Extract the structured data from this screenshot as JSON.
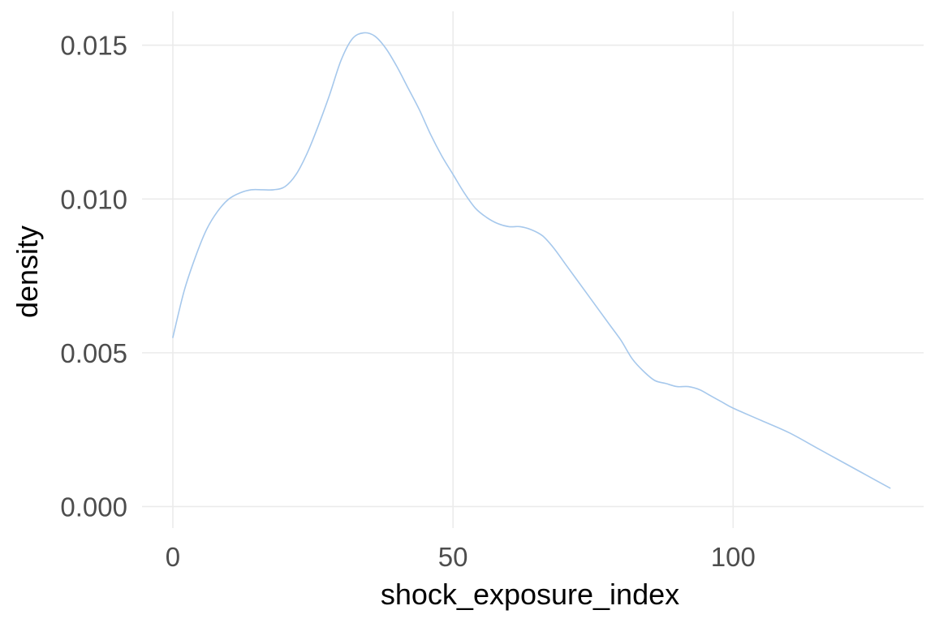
{
  "chart_data": {
    "type": "line",
    "title": "",
    "xlabel": "shock_exposure_index",
    "ylabel": "density",
    "xlim": [
      -5.5,
      134
    ],
    "ylim": [
      -0.0007,
      0.0161
    ],
    "x_ticks": [
      0,
      50,
      100
    ],
    "x_tick_labels": [
      "0",
      "50",
      "100"
    ],
    "y_ticks": [
      0.0,
      0.005,
      0.01,
      0.015
    ],
    "y_tick_labels": [
      "0.000",
      "0.005",
      "0.010",
      "0.015"
    ],
    "grid": true,
    "legend": "none",
    "line_color": "#a6c8ec",
    "grid_color": "#ebebeb",
    "series": [
      {
        "x": [
          0,
          2,
          4,
          6,
          8,
          10,
          12,
          14,
          16,
          18,
          20,
          22,
          24,
          26,
          28,
          30,
          32,
          34,
          36,
          38,
          40,
          42,
          44,
          46,
          48,
          50,
          52,
          54,
          56,
          58,
          60,
          62,
          64,
          66,
          68,
          70,
          72,
          74,
          76,
          78,
          80,
          82,
          84,
          86,
          88,
          90,
          92,
          94,
          96,
          98,
          100,
          105,
          110,
          115,
          120,
          124,
          128
        ],
        "y": [
          0.0055,
          0.007,
          0.0081,
          0.009,
          0.0096,
          0.01,
          0.0102,
          0.0103,
          0.0103,
          0.0103,
          0.0104,
          0.0108,
          0.0115,
          0.0124,
          0.0134,
          0.0145,
          0.0152,
          0.0154,
          0.0153,
          0.0149,
          0.0143,
          0.0136,
          0.0129,
          0.0121,
          0.0114,
          0.0108,
          0.0102,
          0.0097,
          0.0094,
          0.0092,
          0.0091,
          0.0091,
          0.009,
          0.0088,
          0.0084,
          0.0079,
          0.0074,
          0.0069,
          0.0064,
          0.0059,
          0.0054,
          0.0048,
          0.0044,
          0.0041,
          0.004,
          0.0039,
          0.0039,
          0.0038,
          0.0036,
          0.0034,
          0.0032,
          0.0028,
          0.0024,
          0.0019,
          0.0014,
          0.001,
          0.0006
        ]
      }
    ]
  }
}
